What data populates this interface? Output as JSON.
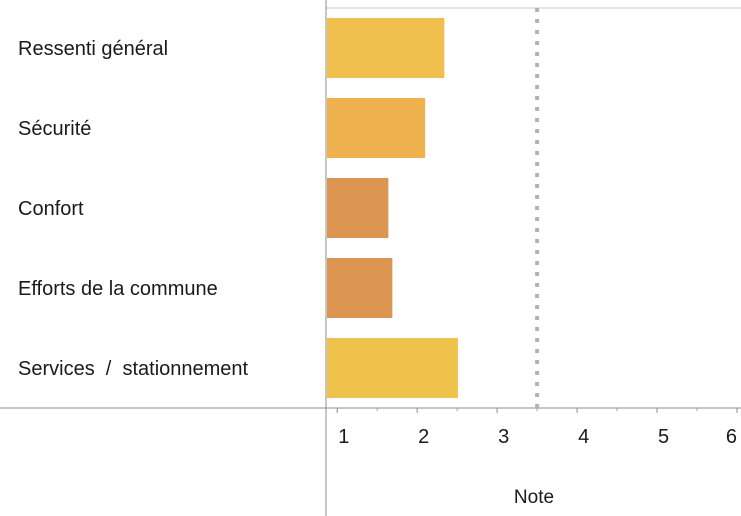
{
  "chart_data": {
    "type": "bar",
    "orientation": "horizontal",
    "categories": [
      "Ressenti général",
      "Sécurité",
      "Confort",
      "Efforts de la commune",
      "Services  /  stationnement"
    ],
    "values": [
      2.34,
      2.1,
      1.64,
      1.69,
      2.51
    ],
    "colors": [
      "#f0c04e",
      "#efb14e",
      "#dd9651",
      "#dd9651",
      "#efc24c"
    ],
    "xlabel": "Note",
    "xlim": [
      0.86,
      6.05
    ],
    "x_ticks": [
      "1",
      "2",
      "3",
      "4",
      "5",
      "6"
    ],
    "reference_line": {
      "value": 3.5,
      "style": "dotted",
      "color": "#b3b3b3"
    },
    "grid": false
  }
}
